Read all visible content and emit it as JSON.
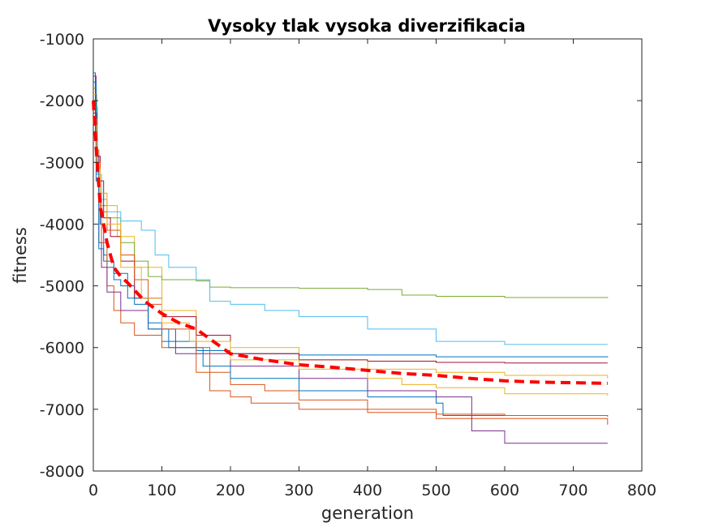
{
  "chart_data": {
    "type": "line",
    "title": "Vysoky tlak vysoka diverzifikacia",
    "xlabel": "generation",
    "ylabel": "fitness",
    "xlim": [
      0,
      800
    ],
    "ylim": [
      -8000,
      -1000
    ],
    "xticks": [
      0,
      100,
      200,
      300,
      400,
      500,
      600,
      700,
      800
    ],
    "yticks": [
      -1000,
      -2000,
      -3000,
      -4000,
      -5000,
      -6000,
      -7000,
      -8000
    ],
    "xtick_labels": [
      "0",
      "100",
      "200",
      "300",
      "400",
      "500",
      "600",
      "700",
      "800"
    ],
    "ytick_labels": [
      "-1000",
      "-2000",
      "-3000",
      "-4000",
      "-5000",
      "-6000",
      "-7000",
      "-8000"
    ],
    "grid": false,
    "legend": "none",
    "series": [
      {
        "color": "#0072BD",
        "style": "step",
        "x": [
          0,
          3,
          6,
          10,
          15,
          20,
          30,
          40,
          60,
          80,
          100,
          150,
          200,
          300,
          500,
          750
        ],
        "y": [
          -1550,
          -2600,
          -3200,
          -4000,
          -4500,
          -4700,
          -4900,
          -5000,
          -5300,
          -5600,
          -5900,
          -6050,
          -6100,
          -6120,
          -6150,
          -6160
        ]
      },
      {
        "color": "#D95319",
        "style": "step",
        "x": [
          0,
          4,
          8,
          12,
          20,
          30,
          40,
          60,
          100,
          150,
          200,
          250,
          300,
          400,
          500,
          750
        ],
        "y": [
          -1800,
          -2800,
          -3600,
          -4300,
          -5000,
          -5400,
          -5600,
          -5800,
          -6000,
          -6400,
          -6600,
          -6700,
          -6850,
          -7000,
          -7150,
          -7250
        ]
      },
      {
        "color": "#EDB120",
        "style": "step",
        "x": [
          0,
          5,
          10,
          20,
          35,
          60,
          100,
          150,
          200,
          300,
          400,
          500,
          600,
          750
        ],
        "y": [
          -1900,
          -3000,
          -3500,
          -3700,
          -4200,
          -4700,
          -5400,
          -5800,
          -6000,
          -6200,
          -6350,
          -6400,
          -6450,
          -6500
        ]
      },
      {
        "color": "#7E2F8E",
        "style": "step",
        "x": [
          0,
          4,
          8,
          12,
          20,
          40,
          80,
          120,
          200,
          300,
          400,
          500,
          549,
          552,
          600,
          750
        ],
        "y": [
          -1600,
          -2900,
          -4300,
          -4700,
          -5100,
          -5400,
          -5700,
          -6100,
          -6300,
          -6500,
          -6700,
          -6800,
          -6800,
          -7350,
          -7550,
          -7550
        ]
      },
      {
        "color": "#77AC30",
        "style": "step",
        "x": [
          0,
          5,
          10,
          20,
          40,
          60,
          80,
          100,
          150,
          170,
          200,
          300,
          400,
          450,
          500,
          600,
          750
        ],
        "y": [
          -2000,
          -3100,
          -3700,
          -3900,
          -4300,
          -4600,
          -4850,
          -4900,
          -4920,
          -5020,
          -5030,
          -5040,
          -5060,
          -5150,
          -5170,
          -5190,
          -5200
        ]
      },
      {
        "color": "#4DBEEE",
        "style": "step",
        "x": [
          0,
          6,
          12,
          20,
          40,
          70,
          90,
          110,
          150,
          170,
          200,
          250,
          300,
          400,
          500,
          600,
          750
        ],
        "y": [
          -2100,
          -3200,
          -3600,
          -3800,
          -3950,
          -4100,
          -4500,
          -4700,
          -4900,
          -5250,
          -5300,
          -5400,
          -5500,
          -5700,
          -5900,
          -5950,
          -5950
        ]
      },
      {
        "color": "#A2142F",
        "style": "step",
        "x": [
          0,
          5,
          10,
          15,
          25,
          40,
          60,
          100,
          150,
          200,
          300,
          400,
          500,
          600,
          750
        ],
        "y": [
          -2200,
          -2900,
          -3300,
          -3900,
          -4200,
          -4600,
          -5200,
          -5500,
          -5800,
          -6100,
          -6200,
          -6220,
          -6240,
          -6250,
          -6250
        ]
      },
      {
        "color": "#0072BD",
        "style": "step",
        "x": [
          0,
          4,
          8,
          15,
          30,
          50,
          80,
          110,
          160,
          200,
          300,
          400,
          500,
          510,
          600,
          750
        ],
        "y": [
          -1700,
          -3300,
          -4400,
          -4600,
          -4800,
          -5200,
          -5700,
          -6000,
          -6300,
          -6500,
          -6700,
          -6800,
          -6900,
          -7100,
          -7100,
          -7120
        ]
      },
      {
        "color": "#D95319",
        "style": "step",
        "x": [
          0,
          5,
          10,
          20,
          40,
          60,
          80,
          100,
          150,
          170,
          200,
          230,
          300,
          400,
          500,
          600,
          750
        ],
        "y": [
          -2300,
          -3000,
          -3800,
          -4100,
          -4500,
          -4900,
          -5300,
          -5700,
          -6000,
          -6700,
          -6800,
          -6900,
          -7000,
          -7050,
          -7080,
          -7100,
          -7100
        ]
      },
      {
        "color": "#EDB120",
        "style": "step",
        "x": [
          0,
          5,
          10,
          20,
          40,
          70,
          100,
          140,
          200,
          300,
          400,
          450,
          500,
          600,
          750
        ],
        "y": [
          -2400,
          -3100,
          -3500,
          -4000,
          -4700,
          -5200,
          -5600,
          -5900,
          -6200,
          -6350,
          -6500,
          -6600,
          -6650,
          -6750,
          -6780
        ]
      },
      {
        "color": "#FF0000",
        "style": "dashed-mean",
        "x": [
          0,
          5,
          10,
          20,
          30,
          40,
          50,
          75,
          100,
          125,
          150,
          175,
          200,
          250,
          300,
          350,
          400,
          450,
          500,
          550,
          600,
          650,
          700,
          750
        ],
        "y": [
          -2000,
          -2900,
          -3700,
          -4300,
          -4700,
          -4850,
          -4950,
          -5250,
          -5450,
          -5600,
          -5700,
          -5900,
          -6100,
          -6200,
          -6280,
          -6320,
          -6370,
          -6420,
          -6450,
          -6500,
          -6540,
          -6560,
          -6570,
          -6580
        ]
      }
    ]
  }
}
